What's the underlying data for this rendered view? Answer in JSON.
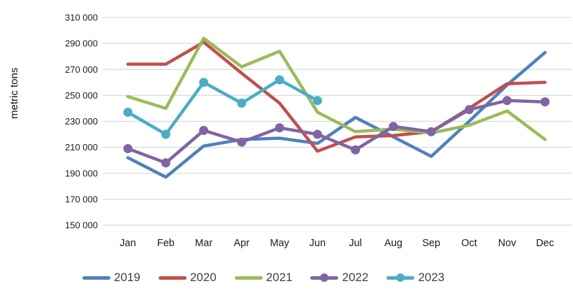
{
  "page": {
    "background": "#ffffff",
    "text_color": "#1a1a1a",
    "gridline_color": "#d9d9d9"
  },
  "chart_data": {
    "type": "line",
    "title": "",
    "xlabel": "",
    "ylabel": "metric tons",
    "categories": [
      "Jan",
      "Feb",
      "Mar",
      "Apr",
      "May",
      "Jun",
      "Jul",
      "Aug",
      "Sep",
      "Oct",
      "Nov",
      "Dec"
    ],
    "ylim": [
      150000,
      310000
    ],
    "ytick_step": 20000,
    "ytick_labels": [
      "150 000",
      "170 000",
      "190 000",
      "210 000",
      "230 000",
      "250 000",
      "270 000",
      "290 000",
      "310 000"
    ],
    "grid": "horizontal",
    "legend_position": "bottom",
    "series": [
      {
        "name": "2019",
        "color": "#4F81BD",
        "marker": false,
        "values": [
          202000,
          187000,
          211000,
          216000,
          217000,
          213000,
          233000,
          218000,
          203000,
          230000,
          258000,
          283000
        ]
      },
      {
        "name": "2020",
        "color": "#C0504D",
        "marker": false,
        "values": [
          274000,
          274000,
          291000,
          267000,
          244000,
          207000,
          218000,
          219000,
          222000,
          240000,
          259000,
          260000
        ]
      },
      {
        "name": "2021",
        "color": "#9BBB59",
        "marker": false,
        "values": [
          249000,
          240000,
          294000,
          272000,
          284000,
          237000,
          222000,
          224000,
          221000,
          227000,
          238000,
          216000
        ]
      },
      {
        "name": "2022",
        "color": "#8064A2",
        "marker": true,
        "values": [
          209000,
          198000,
          223000,
          214000,
          225000,
          220000,
          208000,
          226000,
          222000,
          239000,
          246000,
          245000
        ]
      },
      {
        "name": "2023",
        "color": "#4BACC6",
        "marker": true,
        "values": [
          237000,
          220000,
          260000,
          244000,
          262000,
          246000
        ]
      }
    ]
  }
}
